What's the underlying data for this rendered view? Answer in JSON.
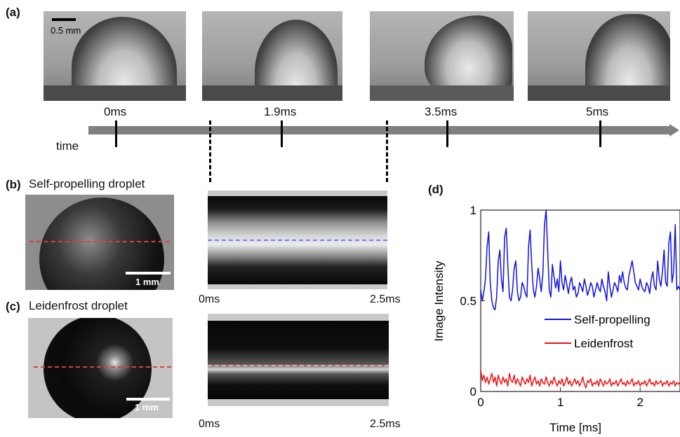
{
  "panel_a": {
    "label": "(a)",
    "scale_bar": "0.5 mm",
    "axis_label": "time",
    "frame_times": [
      "0ms",
      "1.9ms",
      "3.5ms",
      "5ms"
    ]
  },
  "panel_b": {
    "label": "(b)",
    "title": "Self-propelling droplet",
    "scale_bar": "1 mm",
    "kymo_start": "0ms",
    "kymo_end": "2.5ms"
  },
  "panel_c": {
    "label": "(c)",
    "title": "Leidenfrost droplet",
    "scale_bar": "1 mm",
    "kymo_start": "0ms",
    "kymo_end": "2.5ms"
  },
  "panel_d": {
    "label": "(d)"
  },
  "colors": {
    "self_propelling": "#1010e0",
    "leidenfrost": "#ee1111",
    "red_dash": "#d94040",
    "blue_dash": "#6b7bff",
    "pink_dash": "#ff9a9a"
  },
  "chart_data": {
    "type": "line",
    "title": "",
    "xlabel": "Time [ms]",
    "ylabel": "Image Intensity",
    "xlim": [
      0,
      2.5
    ],
    "ylim": [
      0,
      1
    ],
    "xticks": [
      "0",
      "1",
      "2"
    ],
    "yticks": [
      "0",
      "0.5",
      "1"
    ],
    "legend": "center-right",
    "series": [
      {
        "name": "Self-propelling",
        "color": "#1010e0",
        "x": [
          0,
          0.02,
          0.04,
          0.06,
          0.08,
          0.1,
          0.12,
          0.14,
          0.16,
          0.18,
          0.2,
          0.22,
          0.24,
          0.26,
          0.28,
          0.3,
          0.32,
          0.34,
          0.36,
          0.38,
          0.4,
          0.42,
          0.44,
          0.46,
          0.48,
          0.5,
          0.52,
          0.54,
          0.56,
          0.58,
          0.6,
          0.62,
          0.64,
          0.66,
          0.68,
          0.7,
          0.72,
          0.74,
          0.76,
          0.78,
          0.8,
          0.82,
          0.84,
          0.86,
          0.88,
          0.9,
          0.92,
          0.94,
          0.96,
          0.98,
          1.0,
          1.02,
          1.04,
          1.06,
          1.08,
          1.1,
          1.12,
          1.14,
          1.16,
          1.18,
          1.2,
          1.22,
          1.24,
          1.26,
          1.28,
          1.3,
          1.32,
          1.34,
          1.36,
          1.38,
          1.4,
          1.42,
          1.44,
          1.46,
          1.48,
          1.5,
          1.52,
          1.54,
          1.56,
          1.58,
          1.6,
          1.62,
          1.64,
          1.66,
          1.68,
          1.7,
          1.72,
          1.74,
          1.76,
          1.78,
          1.8,
          1.82,
          1.84,
          1.86,
          1.88,
          1.9,
          1.92,
          1.94,
          1.96,
          1.98,
          2.0,
          2.02,
          2.04,
          2.06,
          2.08,
          2.1,
          2.12,
          2.14,
          2.16,
          2.18,
          2.2,
          2.22,
          2.24,
          2.26,
          2.28,
          2.3,
          2.32,
          2.34,
          2.36,
          2.38,
          2.4,
          2.42,
          2.44,
          2.46,
          2.48,
          2.5
        ],
        "y": [
          0.56,
          0.5,
          0.55,
          0.62,
          0.8,
          0.88,
          0.6,
          0.5,
          0.46,
          0.45,
          0.52,
          0.72,
          0.78,
          0.62,
          0.55,
          0.85,
          0.9,
          0.7,
          0.52,
          0.5,
          0.56,
          0.68,
          0.72,
          0.55,
          0.5,
          0.52,
          0.6,
          0.58,
          0.54,
          0.52,
          0.8,
          0.89,
          0.7,
          0.56,
          0.52,
          0.58,
          0.68,
          0.62,
          0.55,
          0.65,
          0.92,
          1.0,
          0.78,
          0.56,
          0.52,
          0.7,
          0.63,
          0.57,
          0.62,
          0.55,
          0.72,
          0.6,
          0.56,
          0.64,
          0.59,
          0.54,
          0.6,
          0.63,
          0.56,
          0.58,
          0.52,
          0.54,
          0.6,
          0.58,
          0.55,
          0.62,
          0.58,
          0.53,
          0.56,
          0.6,
          0.58,
          0.52,
          0.56,
          0.6,
          0.57,
          0.55,
          0.62,
          0.58,
          0.55,
          0.5,
          0.66,
          0.58,
          0.52,
          0.56,
          0.6,
          0.58,
          0.55,
          0.64,
          0.6,
          0.66,
          0.6,
          0.57,
          0.56,
          0.64,
          0.68,
          0.72,
          0.66,
          0.6,
          0.58,
          0.56,
          0.62,
          0.58,
          0.56,
          0.55,
          0.6,
          0.58,
          0.54,
          0.62,
          0.66,
          0.58,
          0.56,
          0.72,
          0.62,
          0.58,
          0.66,
          0.78,
          0.6,
          0.58,
          0.82,
          0.88,
          0.6,
          0.66,
          0.92,
          0.56,
          0.58,
          0.56
        ]
      },
      {
        "name": "Leidenfrost",
        "color": "#ee1111",
        "x": [
          0,
          0.02,
          0.04,
          0.06,
          0.08,
          0.1,
          0.12,
          0.14,
          0.16,
          0.18,
          0.2,
          0.22,
          0.24,
          0.26,
          0.28,
          0.3,
          0.32,
          0.34,
          0.36,
          0.38,
          0.4,
          0.42,
          0.44,
          0.46,
          0.48,
          0.5,
          0.52,
          0.54,
          0.56,
          0.58,
          0.6,
          0.62,
          0.64,
          0.66,
          0.68,
          0.7,
          0.72,
          0.74,
          0.76,
          0.78,
          0.8,
          0.82,
          0.84,
          0.86,
          0.88,
          0.9,
          0.92,
          0.94,
          0.96,
          0.98,
          1.0,
          1.02,
          1.04,
          1.06,
          1.08,
          1.1,
          1.12,
          1.14,
          1.16,
          1.18,
          1.2,
          1.22,
          1.24,
          1.26,
          1.28,
          1.3,
          1.32,
          1.34,
          1.36,
          1.38,
          1.4,
          1.42,
          1.44,
          1.46,
          1.48,
          1.5,
          1.52,
          1.54,
          1.56,
          1.58,
          1.6,
          1.62,
          1.64,
          1.66,
          1.68,
          1.7,
          1.72,
          1.74,
          1.76,
          1.78,
          1.8,
          1.82,
          1.84,
          1.86,
          1.88,
          1.9,
          1.92,
          1.94,
          1.96,
          1.98,
          2.0,
          2.02,
          2.04,
          2.06,
          2.08,
          2.1,
          2.12,
          2.14,
          2.16,
          2.18,
          2.2,
          2.22,
          2.24,
          2.26,
          2.28,
          2.3,
          2.32,
          2.34,
          2.36,
          2.38,
          2.4,
          2.42,
          2.44,
          2.46,
          2.48,
          2.5
        ],
        "y": [
          0.12,
          0.06,
          0.09,
          0.05,
          0.08,
          0.04,
          0.07,
          0.1,
          0.05,
          0.08,
          0.03,
          0.09,
          0.06,
          0.04,
          0.08,
          0.05,
          0.07,
          0.03,
          0.1,
          0.06,
          0.05,
          0.09,
          0.04,
          0.07,
          0.05,
          0.03,
          0.08,
          0.06,
          0.04,
          0.07,
          0.05,
          0.09,
          0.03,
          0.06,
          0.08,
          0.04,
          0.06,
          0.03,
          0.07,
          0.05,
          0.04,
          0.08,
          0.05,
          0.03,
          0.06,
          0.04,
          0.08,
          0.05,
          0.03,
          0.06,
          0.04,
          0.07,
          0.03,
          0.05,
          0.08,
          0.04,
          0.06,
          0.03,
          0.05,
          0.07,
          0.04,
          0.06,
          0.03,
          0.05,
          0.08,
          0.04,
          0.02,
          0.06,
          0.05,
          0.07,
          0.03,
          0.05,
          0.04,
          0.06,
          0.03,
          0.07,
          0.05,
          0.03,
          0.06,
          0.04,
          0.05,
          0.07,
          0.03,
          0.05,
          0.04,
          0.06,
          0.03,
          0.05,
          0.07,
          0.04,
          0.05,
          0.03,
          0.06,
          0.04,
          0.05,
          0.07,
          0.03,
          0.05,
          0.04,
          0.06,
          0.03,
          0.05,
          0.04,
          0.06,
          0.03,
          0.05,
          0.07,
          0.04,
          0.05,
          0.03,
          0.06,
          0.04,
          0.05,
          0.06,
          0.03,
          0.05,
          0.04,
          0.06,
          0.03,
          0.05,
          0.04,
          0.06,
          0.03,
          0.05,
          0.04,
          0.05
        ]
      }
    ]
  }
}
